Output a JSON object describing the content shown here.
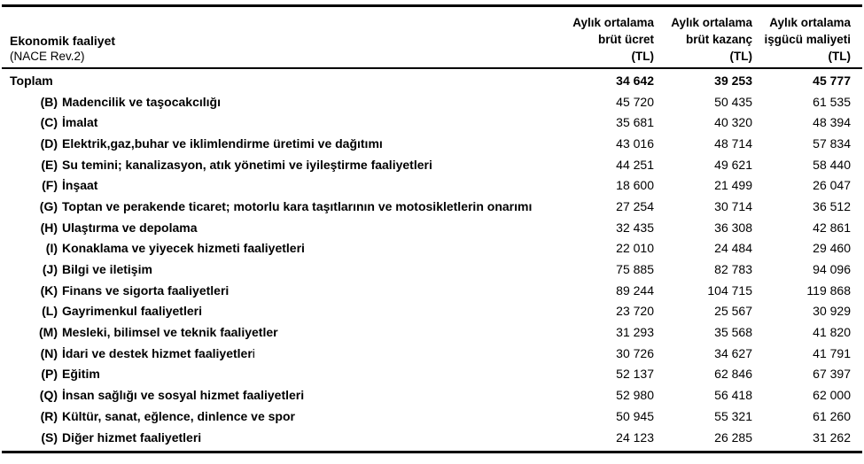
{
  "table": {
    "header": {
      "activity_title": "Ekonomik faaliyet",
      "activity_subtitle": "(NACE Rev.2)",
      "value_columns": [
        {
          "line1": "Aylık ortalama",
          "line2": "brüt ücret",
          "line3": "(TL)"
        },
        {
          "line1": "Aylık ortalama",
          "line2": "brüt kazanç",
          "line3": "(TL)"
        },
        {
          "line1": "Aylık ortalama",
          "line2": "işgücü maliyeti",
          "line3": "(TL)"
        }
      ]
    },
    "rows": [
      {
        "code": "",
        "label": "Toplam",
        "label_tail": "",
        "values": [
          "34 642",
          "39 253",
          "45 777"
        ],
        "total": true
      },
      {
        "code": "(B)",
        "label": "Madencilik ve taşocakcılığı",
        "label_tail": "",
        "values": [
          "45 720",
          "50 435",
          "61 535"
        ],
        "total": false
      },
      {
        "code": "(C)",
        "label": "İmalat",
        "label_tail": "",
        "values": [
          "35 681",
          "40 320",
          "48 394"
        ],
        "total": false
      },
      {
        "code": "(D)",
        "label": "Elektrik,gaz,buhar ve iklimlendirme üretimi ve dağıtımı",
        "label_tail": "",
        "values": [
          "43 016",
          "48 714",
          "57 834"
        ],
        "total": false
      },
      {
        "code": "(E)",
        "label": "Su temini; kanalizasyon, atık yönetimi ve iyileştirme faaliyetleri",
        "label_tail": "",
        "values": [
          "44 251",
          "49 621",
          "58 440"
        ],
        "total": false
      },
      {
        "code": "(F)",
        "label": "İnşaat",
        "label_tail": "",
        "values": [
          "18 600",
          "21 499",
          "26 047"
        ],
        "total": false
      },
      {
        "code": "(G)",
        "label": "Toptan ve perakende ticaret; motorlu kara taşıtlarının ve motosikletlerin onarımı",
        "label_tail": "",
        "values": [
          "27 254",
          "30 714",
          "36 512"
        ],
        "total": false
      },
      {
        "code": "(H)",
        "label": "Ulaştırma ve depolama",
        "label_tail": "",
        "values": [
          "32 435",
          "36 308",
          "42 861"
        ],
        "total": false
      },
      {
        "code": "(I)",
        "label": "Konaklama ve yiyecek hizmeti faaliyetleri",
        "label_tail": "",
        "values": [
          "22 010",
          "24 484",
          "29 460"
        ],
        "total": false
      },
      {
        "code": "(J)",
        "label": "Bilgi ve iletişim",
        "label_tail": "",
        "values": [
          "75 885",
          "82 783",
          "94 096"
        ],
        "total": false
      },
      {
        "code": "(K)",
        "label": "Finans ve sigorta faaliyetleri",
        "label_tail": "",
        "values": [
          "89 244",
          "104 715",
          "119 868"
        ],
        "total": false
      },
      {
        "code": "(L)",
        "label": "Gayrimenkul faaliyetleri",
        "label_tail": "",
        "values": [
          "23 720",
          "25 567",
          "30 929"
        ],
        "total": false
      },
      {
        "code": "(M)",
        "label": "Mesleki, bilimsel ve teknik faaliyetler",
        "label_tail": "",
        "values": [
          "31 293",
          "35 568",
          "41 820"
        ],
        "total": false
      },
      {
        "code": "(N)",
        "label": "İdari ve destek hizmet faaliyetler",
        "label_tail": "i",
        "values": [
          "30 726",
          "34 627",
          "41 791"
        ],
        "total": false
      },
      {
        "code": "(P)",
        "label": "Eğitim",
        "label_tail": "",
        "values": [
          "52 137",
          "62 846",
          "67 397"
        ],
        "total": false
      },
      {
        "code": "(Q)",
        "label": "İnsan sağlığı ve sosyal hizmet faaliyetleri",
        "label_tail": "",
        "values": [
          "52 980",
          "56 418",
          "62 000"
        ],
        "total": false
      },
      {
        "code": "(R)",
        "label": "Kültür, sanat, eğlence, dinlence ve spor",
        "label_tail": "",
        "values": [
          "50 945",
          "55 321",
          "61 260"
        ],
        "total": false
      },
      {
        "code": "(S)",
        "label": "Diğer hizmet faaliyetleri",
        "label_tail": "",
        "values": [
          "24 123",
          "26 285",
          "31 262"
        ],
        "total": false
      }
    ]
  }
}
